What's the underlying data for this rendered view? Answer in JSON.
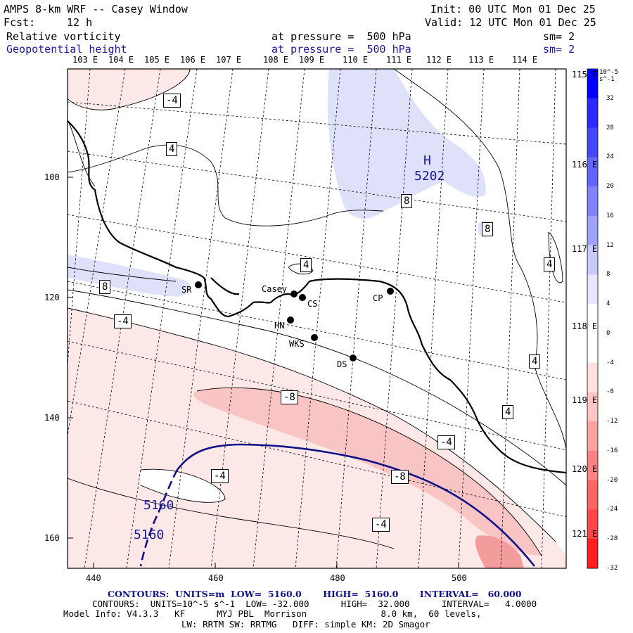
{
  "header": {
    "title": "AMPS 8-km WRF -- Casey Window",
    "fcst_label": "Fcst:",
    "fcst_value": "12 h",
    "init": "Init: 00 UTC Mon 01 Dec 25",
    "valid": "Valid: 12 UTC Mon 01 Dec 25",
    "field1": "Relative vorticity",
    "field1_level": "at pressure =  500 hPa",
    "field1_sm": "sm= 2",
    "field2": "Geopotential height",
    "field2_level": "at pressure =  500 hPa",
    "field2_sm": "sm= 2"
  },
  "longitude_labels_top": [
    "103 E",
    "104 E",
    "105 E",
    "106 E",
    "107 E",
    "108 E",
    "109 E",
    "110 E",
    "111 E",
    "112 E",
    "113 E",
    "114 E"
  ],
  "longitude_labels_right": [
    "115 E",
    "116 E",
    "117 E",
    "118 E",
    "119 E",
    "120 E",
    "121 E"
  ],
  "x_ticks": [
    "440",
    "460",
    "480",
    "500"
  ],
  "y_ticks": [
    "100",
    "120",
    "140",
    "160"
  ],
  "stations": [
    {
      "name": "SR"
    },
    {
      "name": "Casey"
    },
    {
      "name": "CS"
    },
    {
      "name": "CP"
    },
    {
      "name": "HN"
    },
    {
      "name": "WKS"
    },
    {
      "name": "DS"
    }
  ],
  "contour_labels": [
    "-4",
    "4",
    "8",
    "8",
    "8",
    "4",
    "4",
    "4",
    "4",
    "-4",
    "-8",
    "-4",
    "-4",
    "-8",
    "-4"
  ],
  "high_marker": {
    "letter": "H",
    "value": "5202"
  },
  "height_labels": [
    "5160",
    "5160"
  ],
  "colorbar": {
    "units_label": "10^-5 s^-1",
    "ticks": [
      "32",
      "28",
      "24",
      "20",
      "16",
      "12",
      "8",
      "4",
      "0",
      "-4",
      "-8",
      "-12",
      "-16",
      "-20",
      "-24",
      "-28",
      "-32"
    ],
    "colors": [
      "#0000ff",
      "#2a2aff",
      "#4646ff",
      "#6464ff",
      "#8282ff",
      "#a0a0ff",
      "#c8c8ff",
      "#e6e6ff",
      "#ffffff",
      "#ffffff",
      "#ffe0e0",
      "#ffc4c4",
      "#ffa0a0",
      "#ff8282",
      "#ff6464",
      "#ff4646",
      "#ff1e1e"
    ]
  },
  "footer": {
    "line1": "CONTOURS:  UNITS=m  LOW=  5160.0       HIGH=  5160.0       INTERVAL=   60.000",
    "line2": "CONTOURS:  UNITS=10^-5 s^-1  LOW= -32.000      HIGH=  32.000      INTERVAL=   4.0000",
    "line3": "Model Info: V4.3.3   KF      MYJ PBL  Morrison              8.0 km,  60 levels,",
    "line4": "LW: RRTM SW: RRTMG   DIFF: simple KM: 2D Smagor"
  },
  "colors": {
    "height_contour": "#10108a",
    "positive_fill": "#dfe1fa",
    "negative_fill_light": "#fde8e8",
    "negative_fill_mid": "#f8c4c4",
    "negative_fill_strong": "#f39c9c"
  }
}
